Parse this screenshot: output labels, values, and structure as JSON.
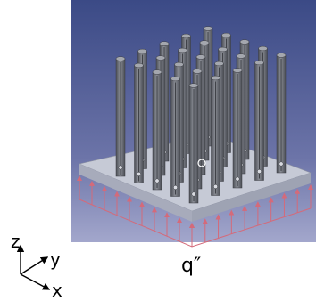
{
  "axes": {
    "z_label": "z",
    "y_label": "y",
    "x_label": "x"
  },
  "heat_flux_label": "q″",
  "colors": {
    "background_top": "#3b4a86",
    "background_bottom": "#9a9fc7",
    "base_plate_top": "#c6cad6",
    "base_plate_side": "#9ea3b3",
    "pin": "#75787f",
    "heat_flux_arrows": "#d46a7a"
  },
  "heat_sink": {
    "pin_rows": 5,
    "pin_columns": 5,
    "pin_count": 25
  }
}
